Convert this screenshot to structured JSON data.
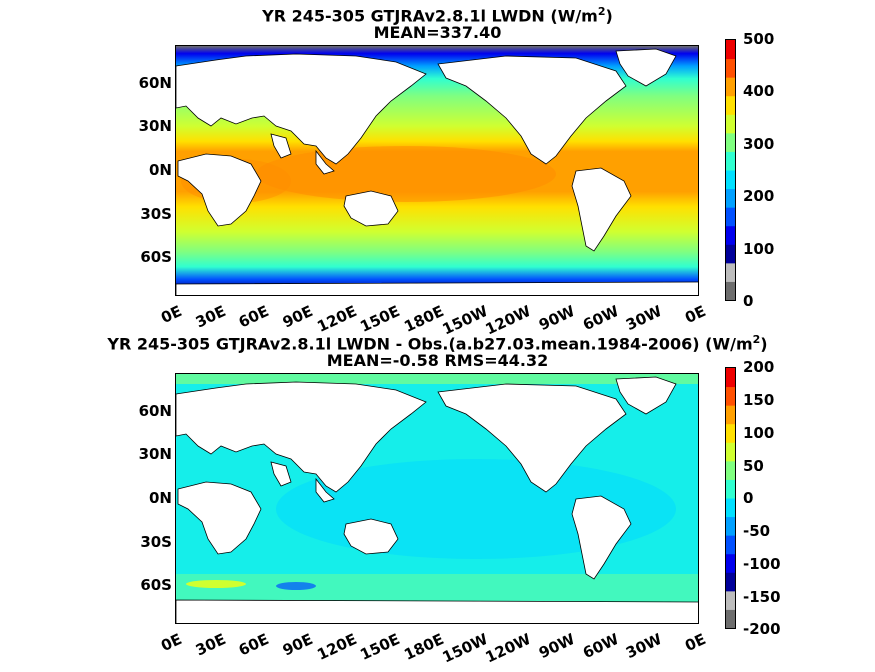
{
  "panels": [
    {
      "title_line1_pre": "YR 245-305 GTJRAv2.8.1l LWDN (W/m",
      "title_sup": "2",
      "title_line1_post": ")",
      "title_line2": "MEAN=337.40",
      "lat_ticks": [
        "60N",
        "30N",
        "0N",
        "30S",
        "60S"
      ],
      "lon_ticks": [
        "0E",
        "30E",
        "60E",
        "90E",
        "120E",
        "150E",
        "180E",
        "150W",
        "120W",
        "90W",
        "60W",
        "30W",
        "0E"
      ],
      "colorbar_ticks": [
        "500",
        "400",
        "300",
        "200",
        "100",
        "0"
      ],
      "colorbar_range": [
        0,
        500
      ],
      "colorbar_colors": [
        "#6d6d6d",
        "#bdbdbd",
        "#00009a",
        "#0000ee",
        "#0050ff",
        "#00a0ff",
        "#00e0ff",
        "#30ffd0",
        "#80ff80",
        "#d0ff30",
        "#ffe000",
        "#ffa000",
        "#ff5000",
        "#ee0000"
      ]
    },
    {
      "title_line1_pre": "YR 245-305 GTJRAv2.8.1l LWDN - Obs.(a.b27.03.mean.1984-2006) (W/m",
      "title_sup": "2",
      "title_line1_post": ")",
      "title_line2": "MEAN=-0.58 RMS=44.32",
      "lat_ticks": [
        "60N",
        "30N",
        "0N",
        "30S",
        "60S"
      ],
      "lon_ticks": [
        "0E",
        "30E",
        "60E",
        "90E",
        "120E",
        "150E",
        "180E",
        "150W",
        "120W",
        "90W",
        "60W",
        "30W",
        "0E"
      ],
      "colorbar_ticks": [
        "200",
        "150",
        "100",
        "50",
        "0",
        "-50",
        "-100",
        "-150",
        "-200"
      ],
      "colorbar_range": [
        -200,
        200
      ],
      "colorbar_colors": [
        "#6d6d6d",
        "#bdbdbd",
        "#00009a",
        "#0000ee",
        "#0050ff",
        "#00a0ff",
        "#00e0ff",
        "#30ffd0",
        "#80ff80",
        "#d0ff30",
        "#ffe000",
        "#ffa000",
        "#ff5000",
        "#ee0000"
      ]
    }
  ],
  "colors": {
    "land": "#ffffff",
    "coast": "#000000"
  }
}
